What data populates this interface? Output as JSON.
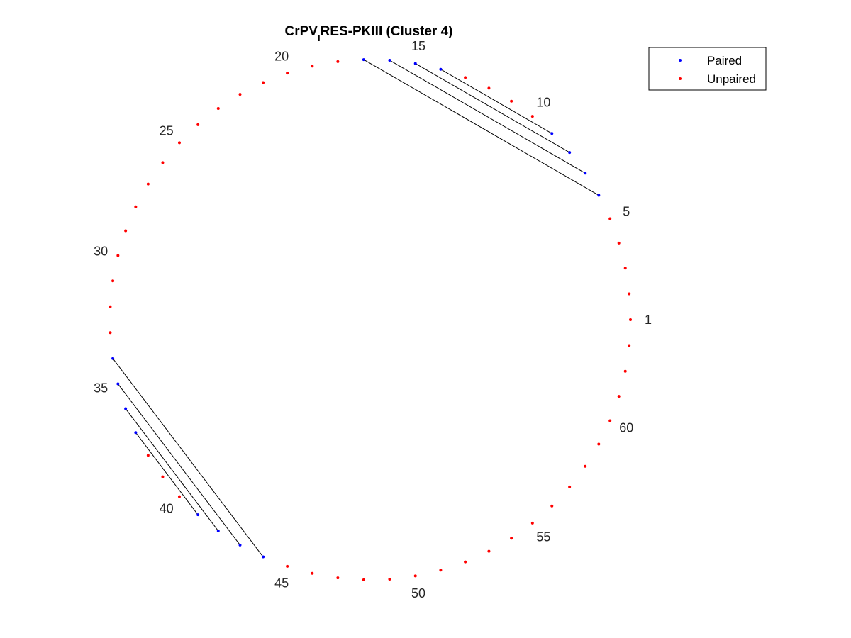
{
  "chart_data": {
    "type": "scatter",
    "title_main": "CrPV",
    "title_subscript": "I",
    "title_rest": "RES-PKIII (Cluster 4)",
    "n_positions": 63,
    "position_labels": [
      1,
      5,
      10,
      15,
      20,
      25,
      30,
      35,
      40,
      45,
      50,
      55,
      60
    ],
    "series": [
      {
        "name": "Paired",
        "color": "#0000ff",
        "positions": [
          6,
          7,
          8,
          9,
          14,
          15,
          16,
          17,
          34,
          35,
          36,
          37,
          41,
          42,
          43,
          44
        ]
      },
      {
        "name": "Unpaired",
        "color": "#ff0000",
        "positions": [
          1,
          2,
          3,
          4,
          5,
          10,
          11,
          12,
          13,
          18,
          19,
          20,
          21,
          22,
          23,
          24,
          25,
          26,
          27,
          28,
          29,
          30,
          31,
          32,
          33,
          38,
          39,
          40,
          45,
          46,
          47,
          48,
          49,
          50,
          51,
          52,
          53,
          54,
          55,
          56,
          57,
          58,
          59,
          60,
          61,
          62,
          63
        ]
      }
    ],
    "pairs": [
      [
        6,
        17
      ],
      [
        7,
        16
      ],
      [
        8,
        15
      ],
      [
        9,
        14
      ],
      [
        34,
        44
      ],
      [
        35,
        43
      ],
      [
        36,
        42
      ],
      [
        37,
        41
      ]
    ],
    "legend": {
      "entries": [
        "Paired",
        "Unpaired"
      ],
      "placement": "top-right"
    },
    "grid": false,
    "axes_visible": false
  }
}
